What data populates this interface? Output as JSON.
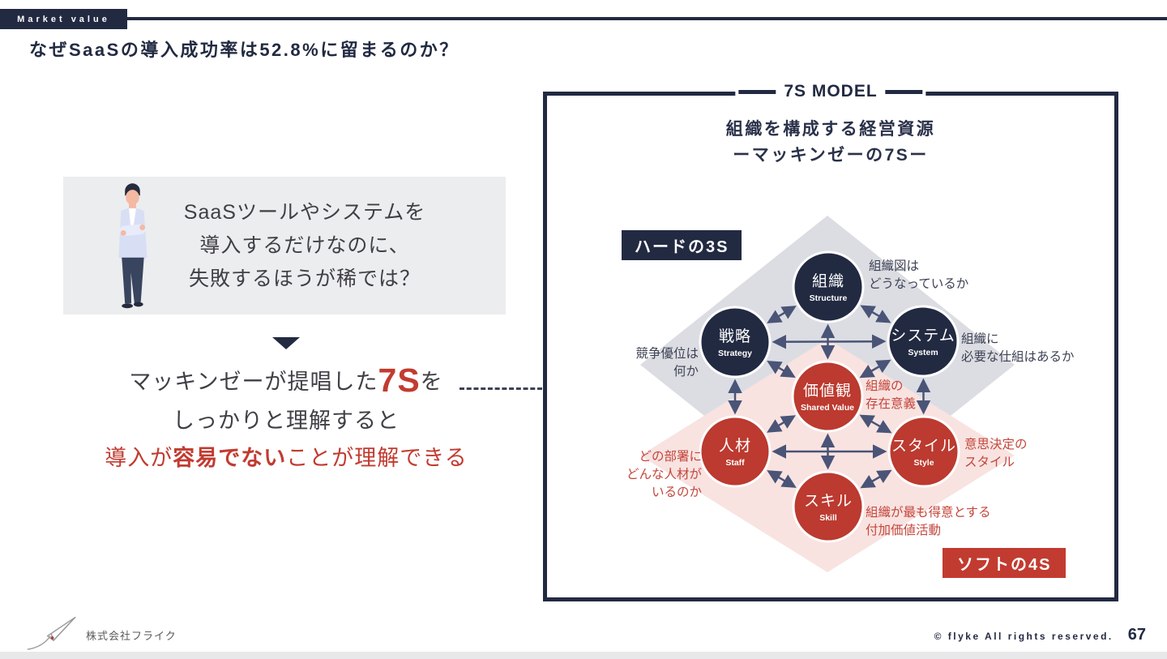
{
  "header": {
    "tag": "Market value",
    "title": "なぜSaaSの導入成功率は52.8%に留まるのか？"
  },
  "left": {
    "callout": {
      "lines": [
        "SaaSツールやシステムを",
        "導入するだけなのに、",
        "失敗するほうが稀では？"
      ]
    },
    "conclusion": {
      "line1_pre": "マッキンゼーが提唱した",
      "line1_em": "7S",
      "line1_post": "を",
      "line2": "しっかりと理解すると",
      "line3_pre": "導入が",
      "line3_em": "容易でない",
      "line3_post": "ことが理解できる"
    }
  },
  "model": {
    "badge": "7S MODEL",
    "title_line1": "組織を構成する経営資源",
    "title_line2": "ーマッキンゼーの7Sー",
    "hard_label": "ハードの3S",
    "soft_label": "ソフトの4S",
    "nodes": [
      {
        "id": "structure",
        "jp": "組織",
        "en": "Structure",
        "type": "hard"
      },
      {
        "id": "strategy",
        "jp": "戦略",
        "en": "Strategy",
        "type": "hard"
      },
      {
        "id": "system",
        "jp": "システム",
        "en": "System",
        "type": "hard"
      },
      {
        "id": "shared_value",
        "jp": "価値観",
        "en": "Shared Value",
        "type": "soft"
      },
      {
        "id": "staff",
        "jp": "人材",
        "en": "Staff",
        "type": "soft"
      },
      {
        "id": "style",
        "jp": "スタイル",
        "en": "Style",
        "type": "soft"
      },
      {
        "id": "skill",
        "jp": "スキル",
        "en": "Skill",
        "type": "soft"
      }
    ],
    "annotations": [
      {
        "for": "structure",
        "lines": [
          "組織図は",
          "どうなっているか"
        ]
      },
      {
        "for": "system",
        "lines": [
          "組織に",
          "必要な仕組はあるか"
        ]
      },
      {
        "for": "strategy",
        "lines": [
          "競争優位は",
          "何か"
        ]
      },
      {
        "for": "shared_value",
        "lines": [
          "組織の",
          "存在意義"
        ]
      },
      {
        "for": "style",
        "lines": [
          "意思決定の",
          "スタイル"
        ]
      },
      {
        "for": "staff",
        "lines": [
          "どの部署に",
          "どんな人材が",
          "いるのか"
        ]
      },
      {
        "for": "skill",
        "lines": [
          "組織が最も得意とする",
          "付加価値活動"
        ]
      }
    ]
  },
  "footer": {
    "company": "株式会社フライク",
    "copyright": "© flyke All rights reserved.",
    "page": "67"
  },
  "colors": {
    "navy": "#222A42",
    "red": "#BC3A2F",
    "red_text": "#C4463B",
    "gray_diamond": "#DCDDE3",
    "pink_diamond": "#F8E3E1",
    "callout_bg": "#ECEDEF",
    "arrow": "#4A5477"
  }
}
